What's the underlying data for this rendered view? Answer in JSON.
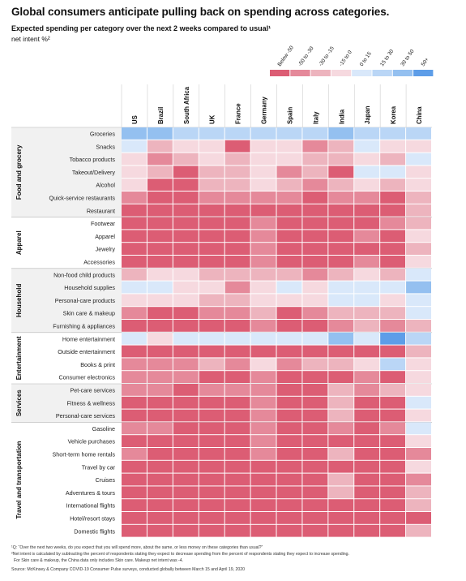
{
  "title": "Global consumers anticipate pulling back on spending across categories.",
  "subtitle": "Expected spending per category over the next 2 weeks compared to usual¹",
  "unit_label": "net intent %²",
  "legend": {
    "bins": [
      "Below -50",
      "-50 to -30",
      "-30 to -15",
      "-15 to 0",
      "0 to 15",
      "15 to 30",
      "30 to 50",
      "50+"
    ],
    "colors": [
      "#dc5d74",
      "#e5899a",
      "#edb4be",
      "#f6d9df",
      "#d9e8fa",
      "#bad6f6",
      "#94c0f0",
      "#5d9de8"
    ]
  },
  "footnotes": [
    "¹Q: “Over the next two weeks, do you expect that you will spend more, about the same, or less money on these categories than usual?”",
    "²Net intent is calculated by subtracting the percent of respondents stating they expect to decrease spending from the percent of respondents stating they expect to increase spending.",
    "For Skin care & makeup, the China data only includes Skin care. Makeup net intent was -4.",
    "Source: McKinsey & Company COVID-19 Consumer Pulse surveys, conducted globally between March 15 and April 19, 2020"
  ],
  "chart_data": {
    "type": "heatmap",
    "title": "Expected spending per category over the next 2 weeks compared to usual",
    "value_label": "net intent %",
    "bins": [
      "Below -50",
      "-50 to -30",
      "-30 to -15",
      "-15 to 0",
      "0 to 15",
      "15 to 30",
      "30 to 50",
      "50+"
    ],
    "countries": [
      "US",
      "Brazil",
      "South Africa",
      "UK",
      "France",
      "Germany",
      "Spain",
      "Italy",
      "India",
      "Japan",
      "Korea",
      "China"
    ],
    "groups": [
      {
        "name": "Food and grocery",
        "categories": [
          "Groceries",
          "Snacks",
          "Tobacco products",
          "Takeout/Delivery",
          "Alcohol",
          "Quick-service restaurants",
          "Restaurant"
        ]
      },
      {
        "name": "Apparel",
        "categories": [
          "Footwear",
          "Apparel",
          "Jewelry",
          "Accessories"
        ]
      },
      {
        "name": "Household",
        "categories": [
          "Non-food child products",
          "Household supplies",
          "Personal-care products",
          "Skin care & makeup",
          "Furnishing & appliances"
        ]
      },
      {
        "name": "Entertainment",
        "categories": [
          "Home entertainment",
          "Outside entertainment",
          "Books & print",
          "Consumer electronics"
        ]
      },
      {
        "name": "Services",
        "categories": [
          "Pet-care services",
          "Fitness & wellness",
          "Personal-care services"
        ]
      },
      {
        "name": "Travel and transportation",
        "categories": [
          "Gasoline",
          "Vehicle purchases",
          "Short-term home rentals",
          "Travel by car",
          "Cruises",
          "Adventures & tours",
          "International flights",
          "Hotel/resort stays",
          "Domestic flights"
        ]
      }
    ],
    "bin_index_rows": [
      [
        6,
        6,
        5,
        5,
        5,
        5,
        5,
        5,
        6,
        5,
        5,
        5
      ],
      [
        4,
        2,
        3,
        3,
        0,
        3,
        3,
        1,
        2,
        4,
        3,
        3
      ],
      [
        3,
        1,
        2,
        3,
        2,
        3,
        3,
        2,
        2,
        3,
        2,
        4
      ],
      [
        3,
        2,
        0,
        2,
        2,
        3,
        1,
        2,
        0,
        4,
        4,
        3
      ],
      [
        3,
        0,
        0,
        2,
        2,
        3,
        2,
        1,
        2,
        3,
        2,
        3
      ],
      [
        1,
        0,
        0,
        1,
        1,
        1,
        1,
        0,
        1,
        1,
        0,
        2
      ],
      [
        0,
        0,
        0,
        0,
        0,
        0,
        0,
        0,
        0,
        0,
        0,
        2
      ],
      [
        0,
        0,
        0,
        0,
        0,
        1,
        0,
        0,
        0,
        0,
        1,
        2
      ],
      [
        0,
        0,
        0,
        0,
        0,
        1,
        0,
        0,
        0,
        1,
        0,
        3
      ],
      [
        0,
        0,
        0,
        0,
        0,
        1,
        0,
        0,
        0,
        0,
        0,
        2
      ],
      [
        0,
        0,
        0,
        0,
        0,
        1,
        0,
        0,
        0,
        1,
        0,
        3
      ],
      [
        2,
        3,
        3,
        2,
        2,
        2,
        2,
        1,
        2,
        3,
        2,
        4
      ],
      [
        4,
        4,
        3,
        3,
        1,
        3,
        4,
        3,
        4,
        4,
        4,
        6
      ],
      [
        3,
        3,
        3,
        2,
        2,
        3,
        3,
        3,
        4,
        4,
        3,
        4
      ],
      [
        1,
        0,
        0,
        1,
        1,
        2,
        0,
        1,
        2,
        2,
        2,
        4
      ],
      [
        0,
        0,
        0,
        0,
        0,
        1,
        0,
        0,
        1,
        2,
        1,
        2
      ],
      [
        4,
        3,
        4,
        4,
        4,
        4,
        4,
        4,
        6,
        4,
        7,
        5
      ],
      [
        0,
        0,
        0,
        0,
        0,
        0,
        0,
        0,
        0,
        0,
        0,
        2
      ],
      [
        1,
        1,
        1,
        2,
        1,
        3,
        1,
        2,
        2,
        3,
        5,
        3
      ],
      [
        1,
        1,
        1,
        0,
        0,
        1,
        0,
        0,
        0,
        1,
        0,
        3
      ],
      [
        1,
        1,
        0,
        1,
        1,
        1,
        0,
        0,
        2,
        1,
        2,
        3
      ],
      [
        0,
        0,
        0,
        0,
        0,
        1,
        0,
        0,
        2,
        0,
        0,
        4
      ],
      [
        0,
        0,
        0,
        0,
        0,
        1,
        0,
        0,
        2,
        0,
        0,
        3
      ],
      [
        1,
        1,
        0,
        0,
        0,
        1,
        0,
        0,
        1,
        0,
        1,
        4
      ],
      [
        0,
        0,
        0,
        0,
        0,
        1,
        0,
        0,
        0,
        0,
        0,
        3
      ],
      [
        1,
        0,
        0,
        0,
        0,
        1,
        0,
        0,
        2,
        0,
        0,
        1
      ],
      [
        0,
        0,
        0,
        0,
        0,
        0,
        0,
        0,
        0,
        0,
        0,
        3
      ],
      [
        0,
        0,
        0,
        0,
        0,
        0,
        0,
        0,
        2,
        0,
        0,
        1
      ],
      [
        0,
        0,
        0,
        0,
        0,
        0,
        0,
        0,
        2,
        0,
        0,
        2
      ],
      [
        0,
        0,
        0,
        0,
        0,
        0,
        0,
        0,
        0,
        0,
        0,
        2
      ],
      [
        0,
        0,
        0,
        0,
        0,
        0,
        0,
        0,
        0,
        0,
        0,
        0
      ],
      [
        0,
        0,
        0,
        0,
        0,
        0,
        0,
        0,
        0,
        0,
        0,
        2
      ]
    ],
    "grid": true,
    "legend_position": "top-right"
  }
}
